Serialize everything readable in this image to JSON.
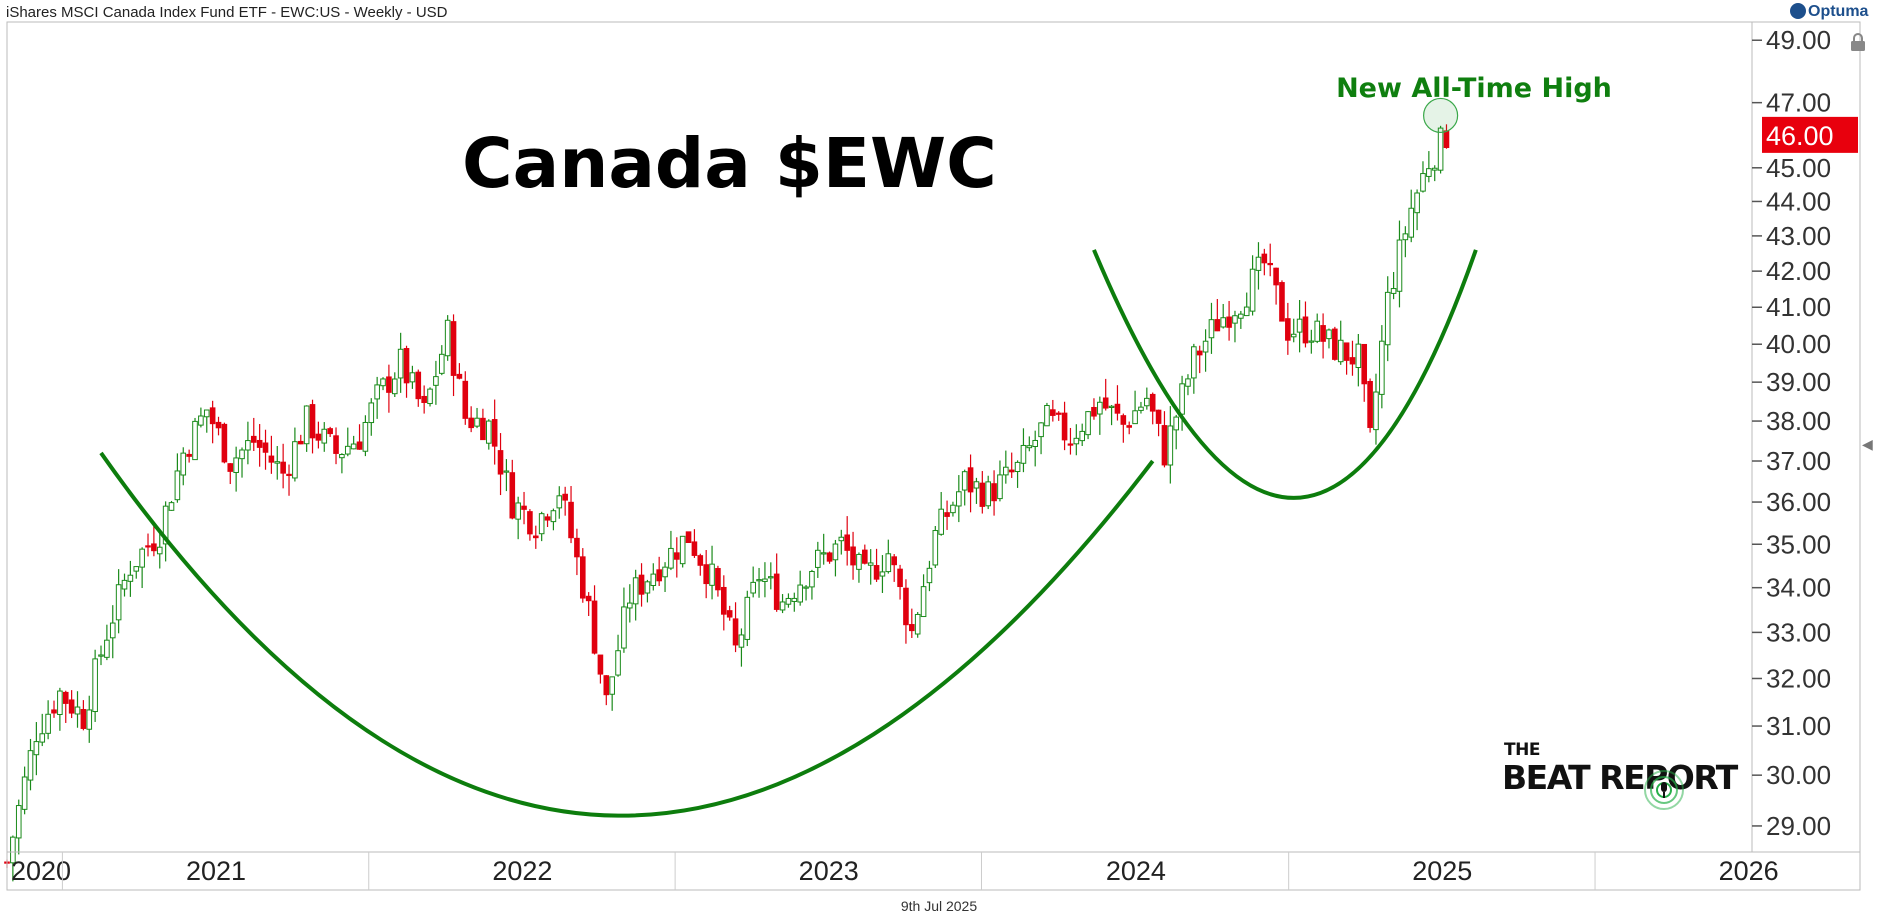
{
  "header": "iShares MSCI Canada Index Fund ETF - EWC:US - Weekly - USD",
  "brand": "Optuma",
  "footer_date": "9th Jul 2025",
  "logo": {
    "line1": "THE",
    "line2": "BEAT REPORT"
  },
  "colors": {
    "up": "#1a8a1a",
    "down": "#e0000f",
    "pattern": "#0d7d0d",
    "price_tag": "#e8000d",
    "annotation": "#0f7f0f"
  },
  "icons": {
    "lock": "lock-icon",
    "collapse": "chevron-left-icon"
  },
  "chart_data": {
    "type": "candlestick",
    "title": "Canada $EWC",
    "annotation": "New All-Time High",
    "current_price": "46.00",
    "y_scale": "log",
    "ylim": [
      28.5,
      49.6
    ],
    "y_ticks": [
      "29.00",
      "30.00",
      "31.00",
      "32.00",
      "33.00",
      "34.00",
      "35.00",
      "36.00",
      "37.00",
      "38.00",
      "39.00",
      "40.00",
      "41.00",
      "42.00",
      "43.00",
      "44.00",
      "45.00",
      "47.00",
      "49.00"
    ],
    "x_labels": [
      "2020",
      "2021",
      "2022",
      "2023",
      "2024",
      "2025",
      "2026"
    ],
    "x_range": [
      "2020-10-26",
      "2026-07-06"
    ],
    "grid": false,
    "patterns": [
      "cup",
      "cup"
    ],
    "weekly_closes": [
      {
        "date": "2020-10-26",
        "close": 28.3
      },
      {
        "date": "2020-11-30",
        "close": 30.9
      },
      {
        "date": "2020-12-28",
        "close": 31.7
      },
      {
        "date": "2021-01-25",
        "close": 31.2
      },
      {
        "date": "2021-02-22",
        "close": 33.0
      },
      {
        "date": "2021-03-22",
        "close": 34.5
      },
      {
        "date": "2021-04-26",
        "close": 35.3
      },
      {
        "date": "2021-05-24",
        "close": 37.2
      },
      {
        "date": "2021-06-21",
        "close": 38.3
      },
      {
        "date": "2021-07-19",
        "close": 37.0
      },
      {
        "date": "2021-08-16",
        "close": 37.5
      },
      {
        "date": "2021-09-20",
        "close": 36.7
      },
      {
        "date": "2021-10-18",
        "close": 38.0
      },
      {
        "date": "2021-11-22",
        "close": 37.2
      },
      {
        "date": "2021-12-20",
        "close": 37.6
      },
      {
        "date": "2022-01-10",
        "close": 38.6
      },
      {
        "date": "2022-02-07",
        "close": 39.5
      },
      {
        "date": "2022-03-07",
        "close": 38.2
      },
      {
        "date": "2022-04-04",
        "close": 40.3
      },
      {
        "date": "2022-04-25",
        "close": 38.1
      },
      {
        "date": "2022-05-23",
        "close": 37.9
      },
      {
        "date": "2022-06-20",
        "close": 36.0
      },
      {
        "date": "2022-07-18",
        "close": 35.5
      },
      {
        "date": "2022-08-15",
        "close": 36.3
      },
      {
        "date": "2022-09-19",
        "close": 33.5
      },
      {
        "date": "2022-10-10",
        "close": 31.5
      },
      {
        "date": "2022-11-07",
        "close": 33.8
      },
      {
        "date": "2022-12-05",
        "close": 34.4
      },
      {
        "date": "2023-01-16",
        "close": 35.2
      },
      {
        "date": "2023-02-13",
        "close": 34.2
      },
      {
        "date": "2023-03-13",
        "close": 32.6
      },
      {
        "date": "2023-04-10",
        "close": 34.3
      },
      {
        "date": "2023-05-08",
        "close": 33.7
      },
      {
        "date": "2023-06-12",
        "close": 34.5
      },
      {
        "date": "2023-07-17",
        "close": 35.0
      },
      {
        "date": "2023-08-14",
        "close": 34.2
      },
      {
        "date": "2023-09-11",
        "close": 34.8
      },
      {
        "date": "2023-10-09",
        "close": 33.0
      },
      {
        "date": "2023-11-06",
        "close": 35.2
      },
      {
        "date": "2023-12-11",
        "close": 36.5
      },
      {
        "date": "2024-01-08",
        "close": 36.2
      },
      {
        "date": "2024-02-12",
        "close": 36.8
      },
      {
        "date": "2024-03-18",
        "close": 38.0
      },
      {
        "date": "2024-04-15",
        "close": 37.6
      },
      {
        "date": "2024-05-20",
        "close": 38.5
      },
      {
        "date": "2024-06-17",
        "close": 37.9
      },
      {
        "date": "2024-07-15",
        "close": 38.6
      },
      {
        "date": "2024-08-05",
        "close": 37.2
      },
      {
        "date": "2024-09-09",
        "close": 39.6
      },
      {
        "date": "2024-10-07",
        "close": 40.6
      },
      {
        "date": "2024-11-04",
        "close": 41.2
      },
      {
        "date": "2024-12-02",
        "close": 42.2
      },
      {
        "date": "2024-12-30",
        "close": 40.4
      },
      {
        "date": "2025-01-27",
        "close": 40.4
      },
      {
        "date": "2025-02-24",
        "close": 39.9
      },
      {
        "date": "2025-03-24",
        "close": 39.6
      },
      {
        "date": "2025-04-07",
        "close": 37.5
      },
      {
        "date": "2025-04-28",
        "close": 41.2
      },
      {
        "date": "2025-05-26",
        "close": 43.8
      },
      {
        "date": "2025-06-16",
        "close": 45.2
      },
      {
        "date": "2025-07-07",
        "close": 46.0
      }
    ]
  }
}
